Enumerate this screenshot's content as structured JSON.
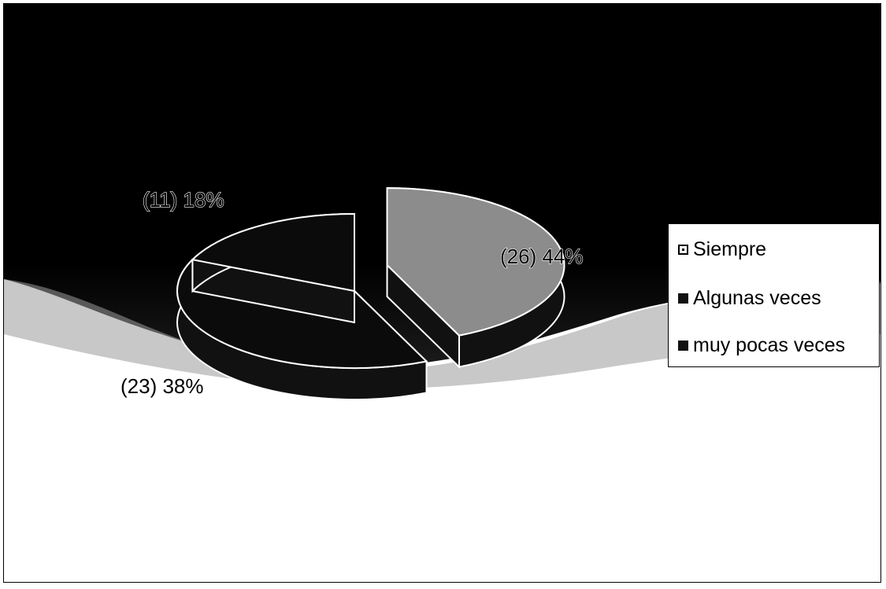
{
  "chart_data": {
    "type": "pie",
    "title": "",
    "categories": [
      "Siempre",
      "Algunas veces",
      "muy pocas veces"
    ],
    "values": [
      26,
      23,
      11
    ],
    "percentages": [
      44,
      38,
      18
    ],
    "data_labels": [
      "(26) 44%",
      "(23) 38%",
      "(11) 18%"
    ],
    "legend_position": "right",
    "exploded_slice": "Siempre",
    "colors": [
      "#ffffff",
      "#111111",
      "#111111"
    ]
  },
  "legend": {
    "items": [
      {
        "label": "Siempre",
        "swatch": "open"
      },
      {
        "label": "Algunas veces",
        "swatch": "solid"
      },
      {
        "label": "muy pocas veces",
        "swatch": "solid"
      }
    ]
  }
}
